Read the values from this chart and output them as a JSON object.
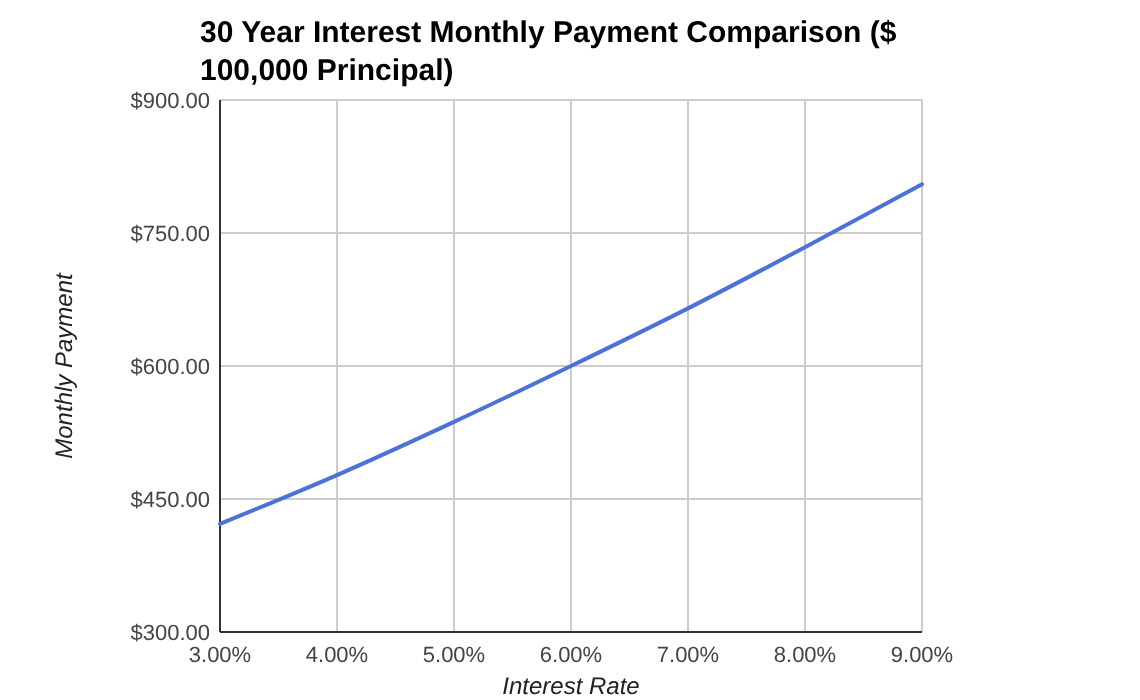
{
  "chart_data": {
    "type": "line",
    "title": "30 Year Interest Monthly Payment Comparison ($ 100,000 Principal)",
    "xlabel": "Interest Rate",
    "ylabel": "Monthly Payment",
    "x": [
      3,
      4,
      5,
      6,
      7,
      8,
      9
    ],
    "series": [
      {
        "color": "#4a72d9",
        "values": [
          422,
          477,
          537,
          600,
          665,
          734,
          805
        ]
      }
    ],
    "xlim": [
      3,
      9
    ],
    "xticks": [
      {
        "value": 3,
        "label": "3.00%"
      },
      {
        "value": 4,
        "label": "4.00%"
      },
      {
        "value": 5,
        "label": "5.00%"
      },
      {
        "value": 6,
        "label": "6.00%"
      },
      {
        "value": 7,
        "label": "7.00%"
      },
      {
        "value": 8,
        "label": "8.00%"
      },
      {
        "value": 9,
        "label": "9.00%"
      }
    ],
    "ylim": [
      300,
      900
    ],
    "yticks": [
      {
        "value": 300,
        "label": "$300.00"
      },
      {
        "value": 450,
        "label": "$450.00"
      },
      {
        "value": 600,
        "label": "$600.00"
      },
      {
        "value": 750,
        "label": "$750.00"
      },
      {
        "value": 900,
        "label": "$900.00"
      }
    ],
    "grid": true,
    "marker": "none",
    "line_style": "solid"
  }
}
